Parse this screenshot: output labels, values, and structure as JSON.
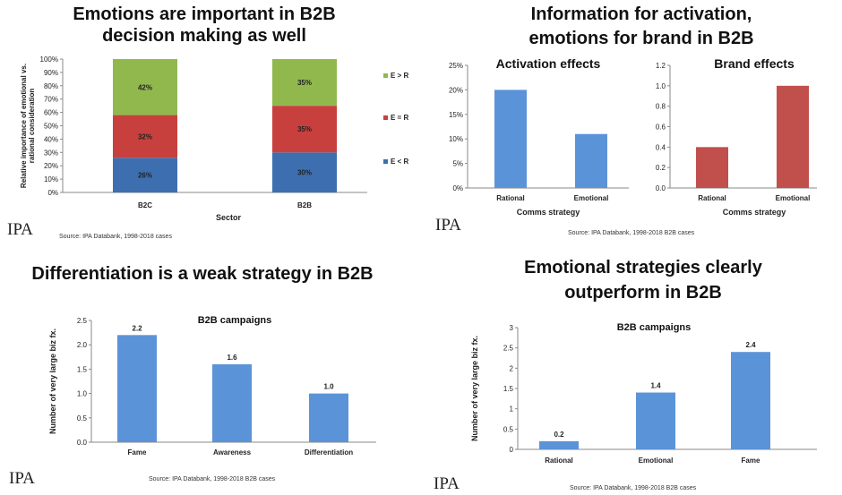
{
  "panels": [
    {
      "title_lines": [
        "Emotions are important in B2B",
        "decision making as well"
      ],
      "source": "Source: IPA Databank, 1998-2018 cases",
      "logo": "IPA"
    },
    {
      "title_lines": [
        "Information for activation,",
        "emotions for brand in B2B"
      ],
      "source": "Source: IPA Databank, 1998-2018 B2B cases",
      "logo": "IPA"
    },
    {
      "title_lines": [
        "Differentiation is a weak strategy in B2B"
      ],
      "source": "Source: IPA Databank, 1998-2018 B2B cases",
      "logo": "IPA"
    },
    {
      "title_lines": [
        "Emotional strategies clearly",
        "outperform in B2B"
      ],
      "source": "Source: IPA Databank, 1998-2018 B2B cases",
      "logo": "IPA"
    }
  ],
  "chart_data": [
    {
      "type": "bar",
      "stacked": true,
      "title": "",
      "categories": [
        "B2C",
        "B2B"
      ],
      "series": [
        {
          "name": "E < R",
          "values": [
            26,
            30
          ],
          "color": "#3d6fb0"
        },
        {
          "name": "E = R",
          "values": [
            32,
            35
          ],
          "color": "#c8403d"
        },
        {
          "name": "E > R",
          "values": [
            42,
            35
          ],
          "color": "#91b84d"
        }
      ],
      "xlabel": "Sector",
      "ylabel": "Relative importance of emotional vs. rational consideration",
      "ylim": [
        0,
        100
      ],
      "yticks": [
        "0%",
        "10%",
        "20%",
        "30%",
        "40%",
        "50%",
        "60%",
        "70%",
        "80%",
        "90%",
        "100%"
      ],
      "value_suffix": "%",
      "legend": "right",
      "grid": false
    },
    {
      "type": "bar",
      "title": "Activation effects",
      "categories": [
        "Rational",
        "Emotional"
      ],
      "values": [
        20,
        11
      ],
      "color": "#5b93d8",
      "xlabel": "Comms strategy",
      "ylabel": "",
      "ylim": [
        0,
        25
      ],
      "yticks": [
        "0%",
        "5%",
        "10%",
        "15%",
        "20%",
        "25%"
      ],
      "grid": false
    },
    {
      "type": "bar",
      "title": "Brand effects",
      "categories": [
        "Rational",
        "Emotional"
      ],
      "values": [
        0.4,
        1.0
      ],
      "color": "#c14f4c",
      "xlabel": "Comms strategy",
      "ylabel": "",
      "ylim": [
        0,
        1.2
      ],
      "yticks": [
        "0.0",
        "0.2",
        "0.4",
        "0.6",
        "0.8",
        "1.0",
        "1.2"
      ],
      "grid": false
    },
    {
      "type": "bar",
      "title": "B2B campaigns",
      "categories": [
        "Fame",
        "Awareness",
        "Differentiation"
      ],
      "values": [
        2.2,
        1.6,
        1.0
      ],
      "data_labels": [
        "2.2",
        "1.6",
        "1.0"
      ],
      "color": "#5b93d8",
      "xlabel": "",
      "ylabel": "Number of very large biz fx.",
      "ylim": [
        0,
        2.5
      ],
      "yticks": [
        "0.0",
        "0.5",
        "1.0",
        "1.5",
        "2.0",
        "2.5"
      ],
      "grid": false
    },
    {
      "type": "bar",
      "title": "B2B campaigns",
      "categories": [
        "Rational",
        "Emotional",
        "Fame"
      ],
      "values": [
        0.2,
        1.4,
        2.4
      ],
      "data_labels": [
        "0.2",
        "1.4",
        "2.4"
      ],
      "color": "#5b93d8",
      "xlabel": "",
      "ylabel": "Number of very large biz fx.",
      "ylim": [
        0,
        3.0
      ],
      "yticks": [
        "0",
        "0.5",
        "1",
        "1.5",
        "2",
        "2.5",
        "3"
      ],
      "grid": false
    }
  ]
}
